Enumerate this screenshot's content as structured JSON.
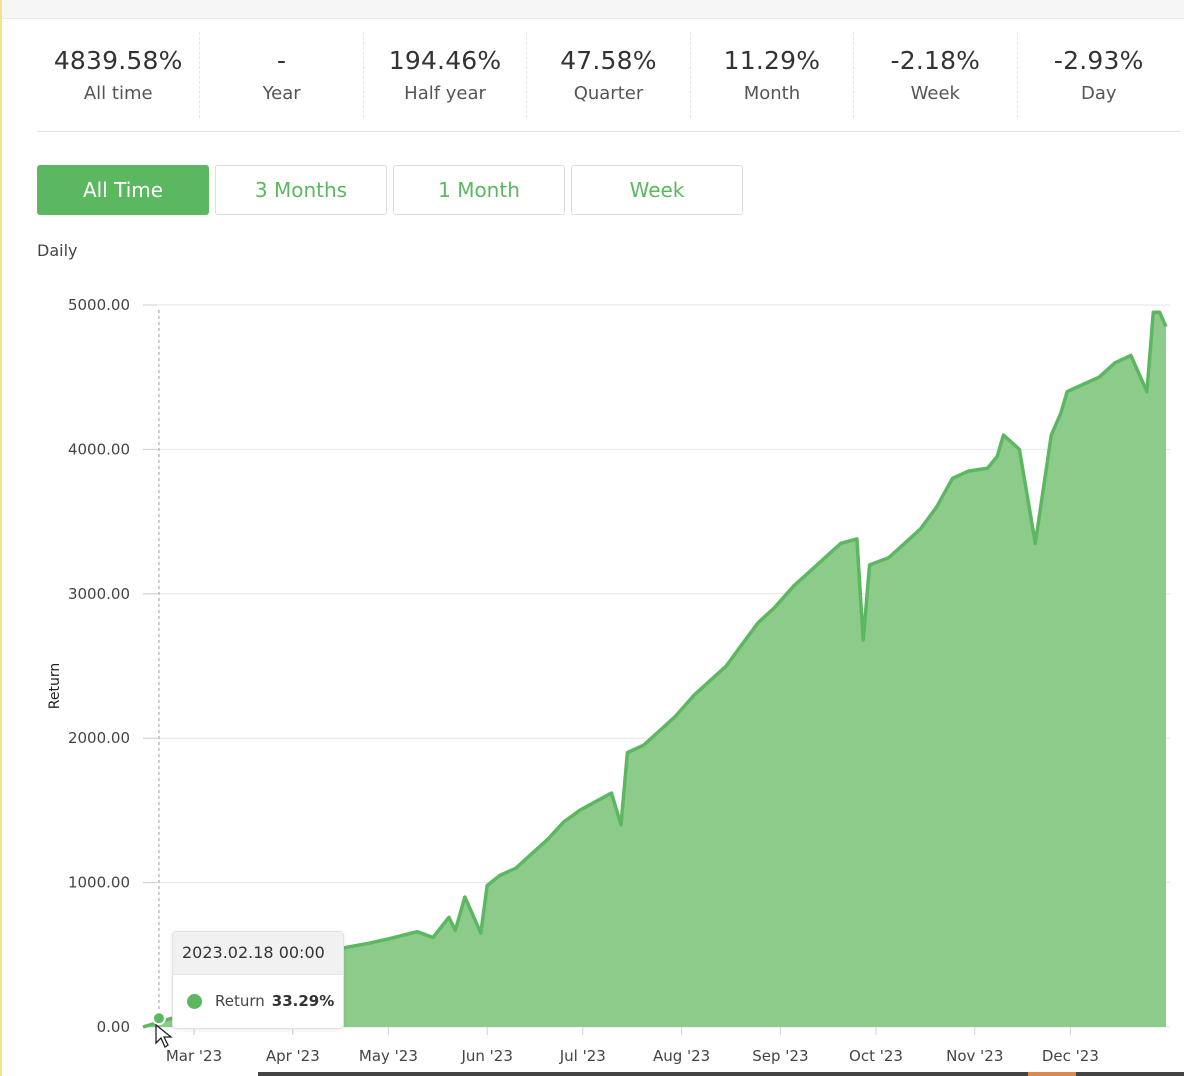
{
  "stats": [
    {
      "value": "4839.58%",
      "label": "All time"
    },
    {
      "value": "-",
      "label": "Year"
    },
    {
      "value": "194.46%",
      "label": "Half year"
    },
    {
      "value": "47.58%",
      "label": "Quarter"
    },
    {
      "value": "11.29%",
      "label": "Month"
    },
    {
      "value": "-2.18%",
      "label": "Week"
    },
    {
      "value": "-2.93%",
      "label": "Day"
    }
  ],
  "ranges": [
    {
      "label": "All Time",
      "active": true
    },
    {
      "label": "3 Months",
      "active": false
    },
    {
      "label": "1 Month",
      "active": false
    },
    {
      "label": "Week",
      "active": false
    }
  ],
  "period_label": "Daily",
  "colors": {
    "accent": "#5cb860",
    "area": "#8dcb8a",
    "line": "#5cb860"
  },
  "tooltip": {
    "date": "2023.02.18 00:00",
    "series": "Return",
    "value": "33.29%"
  },
  "chart_data": {
    "type": "area",
    "ylabel": "Return",
    "xlabel": "",
    "ylim": [
      0,
      5000
    ],
    "y_ticks": [
      "0.00",
      "1000.00",
      "2000.00",
      "3000.00",
      "4000.00",
      "5000.00"
    ],
    "x_ticks": [
      "Mar '23",
      "Apr '23",
      "May '23",
      "Jun '23",
      "Jul '23",
      "Aug '23",
      "Sep '23",
      "Oct '23",
      "Nov '23",
      "Dec '23"
    ],
    "x_range": [
      "2023-02-13",
      "2023-12-31"
    ],
    "grid": true,
    "x": [
      "2023-02-13",
      "2023-02-18",
      "2023-02-25",
      "2023-03-05",
      "2023-03-15",
      "2023-03-25",
      "2023-04-05",
      "2023-04-15",
      "2023-04-25",
      "2023-05-01",
      "2023-05-10",
      "2023-05-15",
      "2023-05-20",
      "2023-05-22",
      "2023-05-25",
      "2023-05-30",
      "2023-06-01",
      "2023-06-05",
      "2023-06-10",
      "2023-06-15",
      "2023-06-20",
      "2023-06-25",
      "2023-06-30",
      "2023-07-05",
      "2023-07-10",
      "2023-07-13",
      "2023-07-15",
      "2023-07-20",
      "2023-07-25",
      "2023-07-30",
      "2023-08-05",
      "2023-08-10",
      "2023-08-15",
      "2023-08-20",
      "2023-08-25",
      "2023-08-30",
      "2023-09-05",
      "2023-09-10",
      "2023-09-15",
      "2023-09-20",
      "2023-09-25",
      "2023-09-27",
      "2023-09-29",
      "2023-10-05",
      "2023-10-10",
      "2023-10-15",
      "2023-10-20",
      "2023-10-25",
      "2023-10-30",
      "2023-11-05",
      "2023-11-08",
      "2023-11-10",
      "2023-11-15",
      "2023-11-20",
      "2023-11-25",
      "2023-11-28",
      "2023-11-30",
      "2023-12-05",
      "2023-12-10",
      "2023-12-15",
      "2023-12-20",
      "2023-12-25",
      "2023-12-27",
      "2023-12-29",
      "2023-12-31"
    ],
    "series": [
      {
        "values": [
          0,
          33,
          80,
          200,
          320,
          420,
          500,
          540,
          580,
          610,
          660,
          620,
          760,
          670,
          900,
          650,
          980,
          1050,
          1100,
          1200,
          1300,
          1420,
          1500,
          1560,
          1620,
          1400,
          1900,
          1950,
          2050,
          2150,
          2300,
          2400,
          2500,
          2650,
          2800,
          2900,
          3050,
          3150,
          3250,
          3350,
          3380,
          2680,
          3200,
          3250,
          3350,
          3450,
          3600,
          3800,
          3850,
          3870,
          3950,
          4100,
          4000,
          3350,
          4100,
          4250,
          4400,
          4450,
          4500,
          4600,
          4650,
          4400,
          4950,
          4950,
          4850
        ]
      }
    ]
  }
}
